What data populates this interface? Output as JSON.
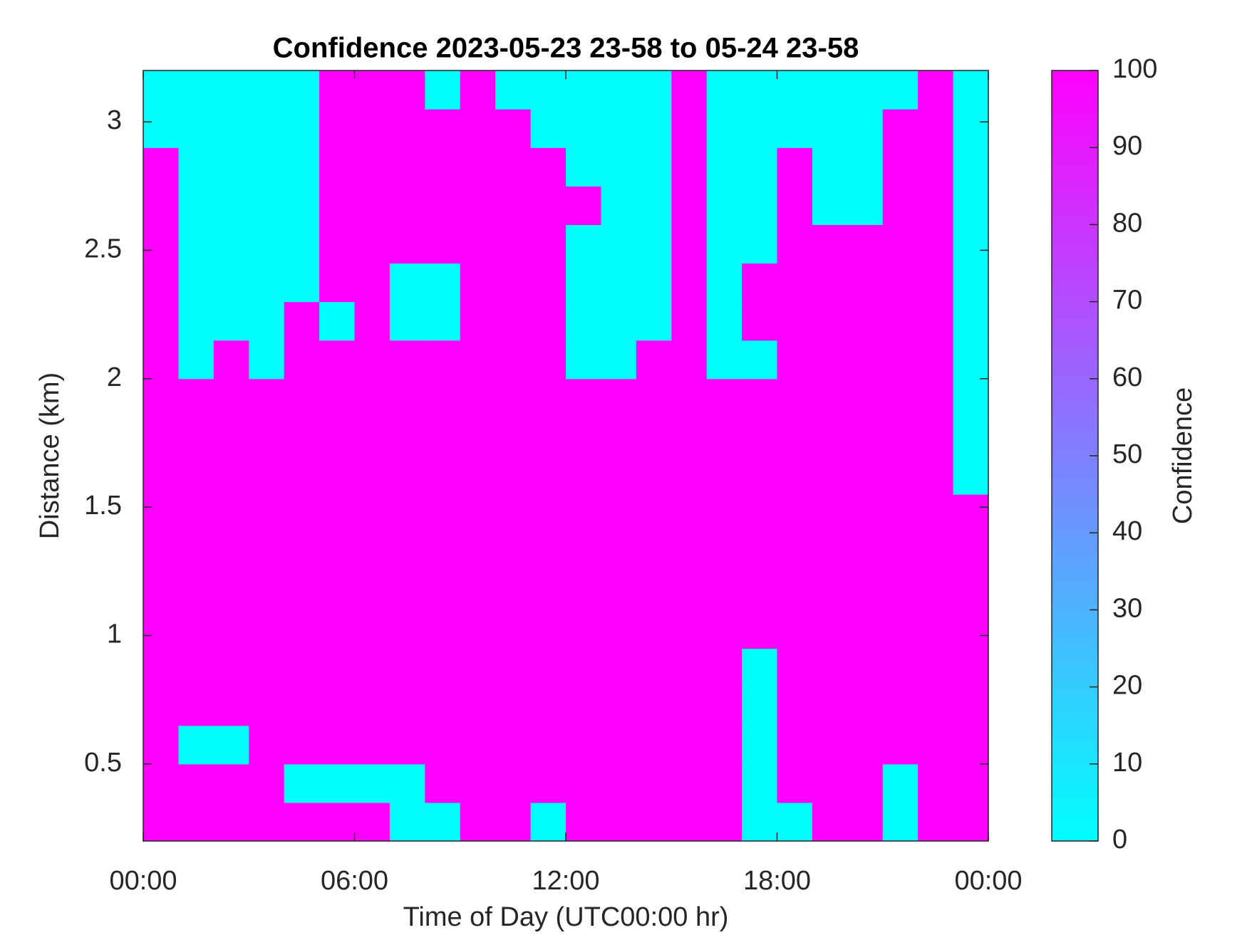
{
  "chart_data": {
    "type": "heatmap",
    "title": "Confidence 2023-05-23 23-58 to 05-24 23-58",
    "x_label": "Time of Day (UTC00:00 hr)",
    "y_label": "Distance (km)",
    "colorbar_label": "Confidence",
    "colormap": [
      "#00ffff",
      "#ff00ff"
    ],
    "clim": [
      0,
      100
    ],
    "cticks": [
      0,
      10,
      20,
      30,
      40,
      50,
      60,
      70,
      80,
      90,
      100
    ],
    "xlim": [
      0,
      24
    ],
    "xticks": [
      {
        "value": 0,
        "label": "00:00"
      },
      {
        "value": 6,
        "label": "06:00"
      },
      {
        "value": 12,
        "label": "12:00"
      },
      {
        "value": 18,
        "label": "18:00"
      },
      {
        "value": 24,
        "label": "00:00"
      }
    ],
    "ylim": [
      0.2,
      3.2
    ],
    "yticks": [
      0.5,
      1,
      1.5,
      2,
      2.5,
      3
    ],
    "x": [
      0.5,
      1.5,
      2.5,
      3.5,
      4.5,
      5.5,
      6.5,
      7.5,
      8.5,
      9.5,
      10.5,
      11.5,
      12.5,
      13.5,
      14.5,
      15.5,
      16.5,
      17.5,
      18.5,
      19.5,
      20.5,
      21.5,
      22.5,
      23.5
    ],
    "y": [
      0.275,
      0.425,
      0.575,
      0.725,
      0.875,
      1.025,
      1.175,
      1.325,
      1.475,
      1.625,
      1.775,
      1.925,
      2.075,
      2.225,
      2.375,
      2.525,
      2.675,
      2.825,
      2.975,
      3.125
    ],
    "z": [
      [
        100,
        100,
        100,
        100,
        100,
        100,
        100,
        0,
        0,
        100,
        100,
        0,
        100,
        100,
        100,
        100,
        100,
        0,
        0,
        100,
        100,
        0,
        100,
        100
      ],
      [
        100,
        100,
        100,
        100,
        0,
        0,
        0,
        0,
        100,
        100,
        100,
        100,
        100,
        100,
        100,
        100,
        100,
        0,
        100,
        100,
        100,
        0,
        100,
        100
      ],
      [
        100,
        0,
        0,
        100,
        100,
        100,
        100,
        100,
        100,
        100,
        100,
        100,
        100,
        100,
        100,
        100,
        100,
        0,
        100,
        100,
        100,
        100,
        100,
        100
      ],
      [
        100,
        100,
        100,
        100,
        100,
        100,
        100,
        100,
        100,
        100,
        100,
        100,
        100,
        100,
        100,
        100,
        100,
        0,
        100,
        100,
        100,
        100,
        100,
        100
      ],
      [
        100,
        100,
        100,
        100,
        100,
        100,
        100,
        100,
        100,
        100,
        100,
        100,
        100,
        100,
        100,
        100,
        100,
        0,
        100,
        100,
        100,
        100,
        100,
        100
      ],
      [
        100,
        100,
        100,
        100,
        100,
        100,
        100,
        100,
        100,
        100,
        100,
        100,
        100,
        100,
        100,
        100,
        100,
        100,
        100,
        100,
        100,
        100,
        100,
        100
      ],
      [
        100,
        100,
        100,
        100,
        100,
        100,
        100,
        100,
        100,
        100,
        100,
        100,
        100,
        100,
        100,
        100,
        100,
        100,
        100,
        100,
        100,
        100,
        100,
        100
      ],
      [
        100,
        100,
        100,
        100,
        100,
        100,
        100,
        100,
        100,
        100,
        100,
        100,
        100,
        100,
        100,
        100,
        100,
        100,
        100,
        100,
        100,
        100,
        100,
        100
      ],
      [
        100,
        100,
        100,
        100,
        100,
        100,
        100,
        100,
        100,
        100,
        100,
        100,
        100,
        100,
        100,
        100,
        100,
        100,
        100,
        100,
        100,
        100,
        100,
        100
      ],
      [
        100,
        100,
        100,
        100,
        100,
        100,
        100,
        100,
        100,
        100,
        100,
        100,
        100,
        100,
        100,
        100,
        100,
        100,
        100,
        100,
        100,
        100,
        100,
        0
      ],
      [
        100,
        100,
        100,
        100,
        100,
        100,
        100,
        100,
        100,
        100,
        100,
        100,
        100,
        100,
        100,
        100,
        100,
        100,
        100,
        100,
        100,
        100,
        100,
        0
      ],
      [
        100,
        100,
        100,
        100,
        100,
        100,
        100,
        100,
        100,
        100,
        100,
        100,
        100,
        100,
        100,
        100,
        100,
        100,
        100,
        100,
        100,
        100,
        100,
        0
      ],
      [
        100,
        0,
        100,
        0,
        100,
        100,
        100,
        100,
        100,
        100,
        100,
        100,
        0,
        0,
        100,
        100,
        0,
        0,
        100,
        100,
        100,
        100,
        100,
        0
      ],
      [
        100,
        0,
        0,
        0,
        100,
        0,
        100,
        0,
        0,
        100,
        100,
        100,
        0,
        0,
        0,
        100,
        0,
        100,
        100,
        100,
        100,
        100,
        100,
        0
      ],
      [
        100,
        0,
        0,
        0,
        0,
        100,
        100,
        0,
        0,
        100,
        100,
        100,
        0,
        0,
        0,
        100,
        0,
        100,
        100,
        100,
        100,
        100,
        100,
        0
      ],
      [
        100,
        0,
        0,
        0,
        0,
        100,
        100,
        100,
        100,
        100,
        100,
        100,
        0,
        0,
        0,
        100,
        0,
        0,
        100,
        100,
        100,
        100,
        100,
        0
      ],
      [
        100,
        0,
        0,
        0,
        0,
        100,
        100,
        100,
        100,
        100,
        100,
        100,
        100,
        0,
        0,
        100,
        0,
        0,
        100,
        0,
        0,
        100,
        100,
        0
      ],
      [
        100,
        0,
        0,
        0,
        0,
        100,
        100,
        100,
        100,
        100,
        100,
        100,
        0,
        0,
        0,
        100,
        0,
        0,
        100,
        0,
        0,
        100,
        100,
        0
      ],
      [
        0,
        0,
        0,
        0,
        0,
        100,
        100,
        100,
        100,
        100,
        100,
        0,
        0,
        0,
        0,
        100,
        0,
        0,
        0,
        0,
        0,
        100,
        100,
        0
      ],
      [
        0,
        0,
        0,
        0,
        0,
        100,
        100,
        100,
        0,
        100,
        0,
        0,
        0,
        0,
        0,
        100,
        0,
        0,
        0,
        0,
        0,
        0,
        100,
        0
      ]
    ]
  }
}
